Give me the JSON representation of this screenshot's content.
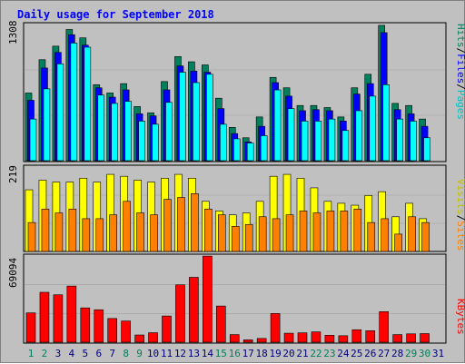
{
  "chart_data": [
    {
      "type": "bar",
      "title": "Daily usage for September 2018",
      "panel": "top",
      "ylabel_max": "1308",
      "ylim": [
        0,
        1308
      ],
      "categories": [
        "1",
        "2",
        "3",
        "4",
        "5",
        "6",
        "7",
        "8",
        "9",
        "10",
        "11",
        "12",
        "13",
        "14",
        "15",
        "16",
        "17",
        "18",
        "19",
        "20",
        "21",
        "22",
        "23",
        "24",
        "25",
        "26",
        "27",
        "28",
        "29",
        "30",
        "31"
      ],
      "legend": [
        "Pages",
        "Files",
        "Hits"
      ],
      "series": [
        {
          "name": "Hits",
          "color": "#00805c",
          "values": [
            650,
            970,
            1100,
            1260,
            1180,
            730,
            650,
            740,
            520,
            460,
            760,
            1000,
            950,
            920,
            600,
            320,
            220,
            420,
            800,
            700,
            530,
            530,
            510,
            420,
            700,
            830,
            1300,
            550,
            530,
            400,
            0
          ]
        },
        {
          "name": "Files",
          "color": "#0000ff",
          "values": [
            580,
            890,
            1040,
            1210,
            1110,
            700,
            610,
            680,
            450,
            430,
            680,
            910,
            860,
            850,
            500,
            260,
            180,
            330,
            750,
            620,
            480,
            490,
            480,
            380,
            640,
            740,
            1230,
            490,
            450,
            330,
            0
          ]
        },
        {
          "name": "Pages",
          "color": "#00ffff",
          "values": [
            400,
            690,
            930,
            1130,
            1090,
            630,
            550,
            570,
            380,
            350,
            560,
            850,
            750,
            830,
            350,
            210,
            170,
            240,
            680,
            500,
            380,
            380,
            400,
            290,
            480,
            620,
            730,
            400,
            380,
            220,
            0
          ]
        }
      ]
    },
    {
      "type": "bar",
      "panel": "middle",
      "ylabel_max": "219",
      "ylim": [
        0,
        219
      ],
      "categories": [
        "1",
        "2",
        "3",
        "4",
        "5",
        "6",
        "7",
        "8",
        "9",
        "10",
        "11",
        "12",
        "13",
        "14",
        "15",
        "16",
        "17",
        "18",
        "19",
        "20",
        "21",
        "22",
        "23",
        "24",
        "25",
        "26",
        "27",
        "28",
        "29",
        "30",
        "31"
      ],
      "legend": [
        "Sites",
        "Visits"
      ],
      "series": [
        {
          "name": "Visits",
          "color": "#ffff00",
          "values": [
            160,
            185,
            180,
            180,
            190,
            180,
            200,
            195,
            185,
            180,
            190,
            200,
            190,
            130,
            105,
            95,
            100,
            130,
            195,
            200,
            190,
            165,
            130,
            125,
            120,
            145,
            155,
            90,
            125,
            85,
            0
          ]
        },
        {
          "name": "Sites",
          "color": "#ff8000",
          "values": [
            75,
            110,
            100,
            110,
            85,
            85,
            95,
            130,
            100,
            95,
            135,
            140,
            150,
            110,
            95,
            65,
            70,
            90,
            85,
            95,
            105,
            100,
            105,
            105,
            110,
            75,
            85,
            45,
            90,
            75,
            0
          ]
        }
      ]
    },
    {
      "type": "bar",
      "panel": "bottom",
      "ylabel_max": "69094",
      "ylim": [
        0,
        69094
      ],
      "categories": [
        "1",
        "2",
        "3",
        "4",
        "5",
        "6",
        "7",
        "8",
        "9",
        "10",
        "11",
        "12",
        "13",
        "14",
        "15",
        "16",
        "17",
        "18",
        "19",
        "20",
        "21",
        "22",
        "23",
        "24",
        "25",
        "26",
        "27",
        "28",
        "29",
        "30",
        "31"
      ],
      "legend": [
        "KBytes"
      ],
      "series": [
        {
          "name": "KBytes",
          "color": "#ff0000",
          "values": [
            23500,
            40000,
            38000,
            45000,
            27500,
            26000,
            19000,
            17000,
            5800,
            7600,
            21000,
            46000,
            52000,
            69000,
            29000,
            6100,
            1900,
            3000,
            23000,
            7200,
            7500,
            8300,
            5600,
            5200,
            10000,
            9200,
            24500,
            6100,
            6700,
            6900,
            0
          ]
        }
      ]
    }
  ],
  "page": {
    "title": "Daily usage for September 2018",
    "x_labels": [
      "1",
      "2",
      "3",
      "4",
      "5",
      "6",
      "7",
      "8",
      "9",
      "10",
      "11",
      "12",
      "13",
      "14",
      "15",
      "16",
      "17",
      "18",
      "19",
      "20",
      "21",
      "22",
      "23",
      "24",
      "25",
      "26",
      "27",
      "28",
      "29",
      "30",
      "31"
    ],
    "weekend_days": [
      1,
      2,
      8,
      9,
      15,
      16,
      22,
      23,
      29,
      30
    ],
    "colors": {
      "title": "#0000ff",
      "weekday_label": "#000080",
      "weekend_label": "#00805c",
      "frame_bg": "#c0c0c0",
      "panel_bg": "#c0c0c0"
    }
  }
}
